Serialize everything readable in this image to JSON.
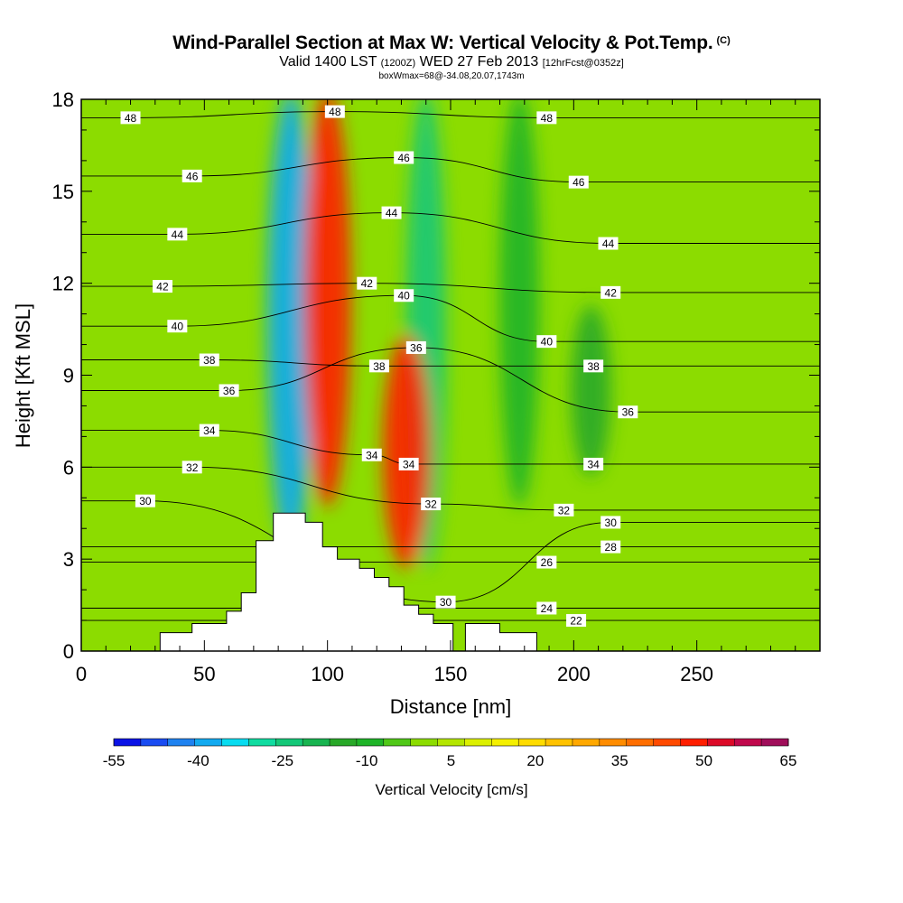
{
  "header": {
    "title": "Wind-Parallel Section at Max W: Vertical Velocity & Pot.Temp.",
    "copyright": "(C)",
    "subtitle_main_a": "Valid 1400 LST",
    "subtitle_small_a": "(1200Z)",
    "subtitle_main_b": "WED 27 Feb 2013",
    "subtitle_small_b": "[12hrFcst@0352z]",
    "subsubtitle": "boxWmax=68@-34.08,20.07,1743m"
  },
  "chart_data": {
    "type": "heatmap",
    "title": "Wind-Parallel Section at Max W: Vertical Velocity & Pot.Temp.",
    "xlabel": "Distance [nm]",
    "ylabel": "Height [Kft MSL]",
    "xlim": [
      0,
      300
    ],
    "ylim": [
      0,
      18
    ],
    "x_ticks": [
      0,
      50,
      100,
      150,
      200,
      250
    ],
    "y_ticks": [
      0,
      3,
      6,
      9,
      12,
      15,
      18
    ],
    "grid": false,
    "colorbar": {
      "title": "Vertical Velocity [cm/s]",
      "placement": "bottom",
      "tick_labels": [
        "-55",
        "-40",
        "-25",
        "-10",
        "5",
        "20",
        "35",
        "50",
        "65"
      ],
      "levels": [
        -55,
        -50,
        -45,
        -40,
        -35,
        -30,
        -25,
        -20,
        -15,
        -10,
        -5,
        0,
        5,
        10,
        15,
        20,
        25,
        30,
        35,
        40,
        45,
        50,
        55,
        60,
        65
      ],
      "colors": [
        "#0a12e6",
        "#1a4cf2",
        "#1e82f0",
        "#12aaf0",
        "#08dcf0",
        "#10dca0",
        "#14c878",
        "#18b450",
        "#28a828",
        "#1eb428",
        "#50c818",
        "#8cdc00",
        "#b4e600",
        "#dcf000",
        "#f5f000",
        "#ffdc00",
        "#ffc200",
        "#ffa800",
        "#ff8c00",
        "#ff6e00",
        "#ff4a00",
        "#ff1e00",
        "#dc0a28",
        "#c0084c",
        "#a00e5a"
      ]
    },
    "velocity_features": [
      {
        "x": 85,
        "y_bottom": 3.5,
        "y_top": 18,
        "value": -40,
        "note": "downdraft core"
      },
      {
        "x": 140,
        "y_bottom": 3.0,
        "y_top": 18,
        "value": -25,
        "note": "downdraft"
      },
      {
        "x": 100,
        "y_bottom": 5,
        "y_top": 18,
        "value": 50,
        "note": "updraft aloft"
      },
      {
        "x": 132,
        "y_bottom": 3,
        "y_top": 10,
        "value": 50,
        "note": "updraft core"
      },
      {
        "x": 178,
        "y_bottom": 5,
        "y_top": 18,
        "value": -10,
        "note": "weak downdraft"
      },
      {
        "x": 207,
        "y_bottom": 6,
        "y_top": 11,
        "value": -15,
        "note": "weak downdraft"
      }
    ],
    "theta_contours": {
      "units": "C",
      "labels": [
        {
          "text": "48",
          "x": 20,
          "y": 17.4
        },
        {
          "text": "48",
          "x": 103,
          "y": 17.6
        },
        {
          "text": "48",
          "x": 189,
          "y": 17.4
        },
        {
          "text": "46",
          "x": 45,
          "y": 15.5
        },
        {
          "text": "46",
          "x": 131,
          "y": 16.1
        },
        {
          "text": "46",
          "x": 202,
          "y": 15.3
        },
        {
          "text": "44",
          "x": 39,
          "y": 13.6
        },
        {
          "text": "44",
          "x": 126,
          "y": 14.3
        },
        {
          "text": "44",
          "x": 214,
          "y": 13.3
        },
        {
          "text": "42",
          "x": 33,
          "y": 11.9
        },
        {
          "text": "42",
          "x": 116,
          "y": 12.0
        },
        {
          "text": "42",
          "x": 215,
          "y": 11.7
        },
        {
          "text": "40",
          "x": 39,
          "y": 10.6
        },
        {
          "text": "40",
          "x": 131,
          "y": 11.6
        },
        {
          "text": "40",
          "x": 189,
          "y": 10.1
        },
        {
          "text": "38",
          "x": 52,
          "y": 9.5
        },
        {
          "text": "38",
          "x": 121,
          "y": 9.3
        },
        {
          "text": "38",
          "x": 208,
          "y": 9.3
        },
        {
          "text": "36",
          "x": 60,
          "y": 8.5
        },
        {
          "text": "36",
          "x": 136,
          "y": 9.9
        },
        {
          "text": "36",
          "x": 222,
          "y": 7.8
        },
        {
          "text": "34",
          "x": 52,
          "y": 7.2
        },
        {
          "text": "34",
          "x": 118,
          "y": 6.4
        },
        {
          "text": "34",
          "x": 133,
          "y": 6.1
        },
        {
          "text": "34",
          "x": 208,
          "y": 6.1
        },
        {
          "text": "32",
          "x": 45,
          "y": 6.0
        },
        {
          "text": "32",
          "x": 142,
          "y": 4.8
        },
        {
          "text": "32",
          "x": 196,
          "y": 4.6
        },
        {
          "text": "30",
          "x": 26,
          "y": 4.9
        },
        {
          "text": "30",
          "x": 148,
          "y": 1.6
        },
        {
          "text": "30",
          "x": 215,
          "y": 4.2
        },
        {
          "text": "28",
          "x": 215,
          "y": 3.4
        },
        {
          "text": "26",
          "x": 189,
          "y": 2.9
        },
        {
          "text": "24",
          "x": 189,
          "y": 1.4
        },
        {
          "text": "22",
          "x": 201,
          "y": 1.0
        }
      ]
    },
    "terrain": [
      [
        0,
        0
      ],
      [
        32,
        0
      ],
      [
        32,
        0.6
      ],
      [
        45,
        0.6
      ],
      [
        45,
        0.9
      ],
      [
        59,
        0.9
      ],
      [
        59,
        1.3
      ],
      [
        65,
        1.3
      ],
      [
        65,
        1.9
      ],
      [
        71,
        1.9
      ],
      [
        71,
        3.6
      ],
      [
        78,
        3.6
      ],
      [
        78,
        4.5
      ],
      [
        91,
        4.5
      ],
      [
        91,
        4.2
      ],
      [
        98,
        4.2
      ],
      [
        98,
        3.4
      ],
      [
        104,
        3.4
      ],
      [
        104,
        3.0
      ],
      [
        113,
        3.0
      ],
      [
        113,
        2.7
      ],
      [
        119,
        2.7
      ],
      [
        119,
        2.4
      ],
      [
        125,
        2.4
      ],
      [
        125,
        2.1
      ],
      [
        131,
        2.1
      ],
      [
        131,
        1.5
      ],
      [
        137,
        1.5
      ],
      [
        137,
        1.2
      ],
      [
        143,
        1.2
      ],
      [
        143,
        0.9
      ],
      [
        151,
        0.9
      ],
      [
        151,
        0
      ],
      [
        156,
        0
      ],
      [
        156,
        0.9
      ],
      [
        170,
        0.9
      ],
      [
        170,
        0.6
      ],
      [
        185,
        0.6
      ],
      [
        185,
        0
      ],
      [
        300,
        0
      ]
    ]
  }
}
